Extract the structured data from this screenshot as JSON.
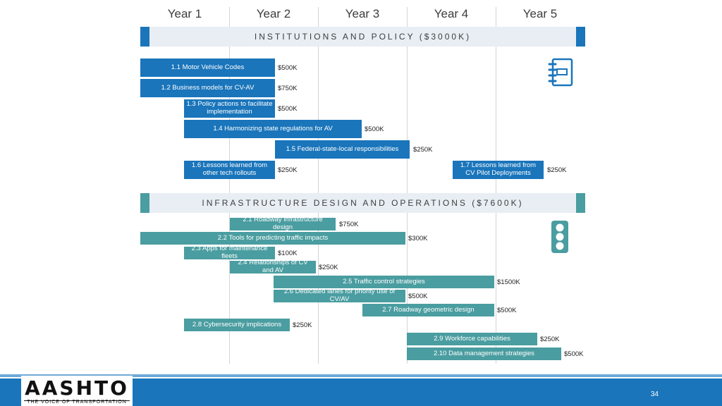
{
  "years": [
    "Year 1",
    "Year 2",
    "Year 3",
    "Year 4",
    "Year 5"
  ],
  "sections": {
    "institutions": {
      "title": "INSTITUTIONS AND POLICY ($3000K)",
      "color": "#1a75bb",
      "icon": "notebook-icon",
      "items": [
        {
          "label": "1.1 Motor Vehicle Codes",
          "cost": "$500K",
          "start_year": 0,
          "end_year": 1.5
        },
        {
          "label": "1.2 Business models for CV-AV",
          "cost": "$750K",
          "start_year": 0,
          "end_year": 1.5
        },
        {
          "label": "1.3 Policy actions to facilitate implementation",
          "cost": "$500K",
          "start_year": 0.5,
          "end_year": 1.5
        },
        {
          "label": "1.4 Harmonizing state regulations for AV",
          "cost": "$500K",
          "start_year": 0.5,
          "end_year": 2.5
        },
        {
          "label": "1.5 Federal-state-local responsibilities",
          "cost": "$250K",
          "start_year": 1.5,
          "end_year": 3
        },
        {
          "label": "1.6 Lessons learned from other tech rollouts",
          "cost": "$250K",
          "start_year": 0.5,
          "end_year": 1.5
        },
        {
          "label": "1.7 Lessons learned from CV Pilot Deployments",
          "cost": "$250K",
          "start_year": 3.5,
          "end_year": 4.5
        }
      ]
    },
    "infrastructure": {
      "title": "INFRASTRUCTURE DESIGN AND OPERATIONS ($7600K)",
      "color": "#4a9da0",
      "icon": "traffic-light-icon",
      "items": [
        {
          "label": "2.1 Roadway infrastructure design",
          "cost": "$750K",
          "start_year": 1,
          "end_year": 2.2
        },
        {
          "label": "2.2 Tools for predicting traffic impacts",
          "cost": "$300K",
          "start_year": 0,
          "end_year": 3
        },
        {
          "label": "2.3 Apps for maintenance fleets",
          "cost": "$100K",
          "start_year": 0.5,
          "end_year": 1.5
        },
        {
          "label": "2.4 Relationships of CV and AV",
          "cost": "$250K",
          "start_year": 1,
          "end_year": 2
        },
        {
          "label": "2.5  Traffic control strategies",
          "cost": "$1500K",
          "start_year": 1.5,
          "end_year": 4
        },
        {
          "label": "2.6 Dedicated lanes for priority use of CV/AV",
          "cost": "$500K",
          "start_year": 1.5,
          "end_year": 3
        },
        {
          "label": "2.7 Roadway geometric design",
          "cost": "$500K",
          "start_year": 2.5,
          "end_year": 4
        },
        {
          "label": "2.8 Cybersecurity implications",
          "cost": "$250K",
          "start_year": 0.5,
          "end_year": 1.7
        },
        {
          "label": "2.9 Workforce capabilities",
          "cost": "$250K",
          "start_year": 3,
          "end_year": 4.5
        },
        {
          "label": "2.10 Data management strategies",
          "cost": "$500K",
          "start_year": 3,
          "end_year": 5
        }
      ]
    }
  },
  "footer": {
    "logo_text": "AASHTO",
    "logo_tagline": "THE VOICE OF TRANSPORTATION",
    "page_number": "34"
  }
}
